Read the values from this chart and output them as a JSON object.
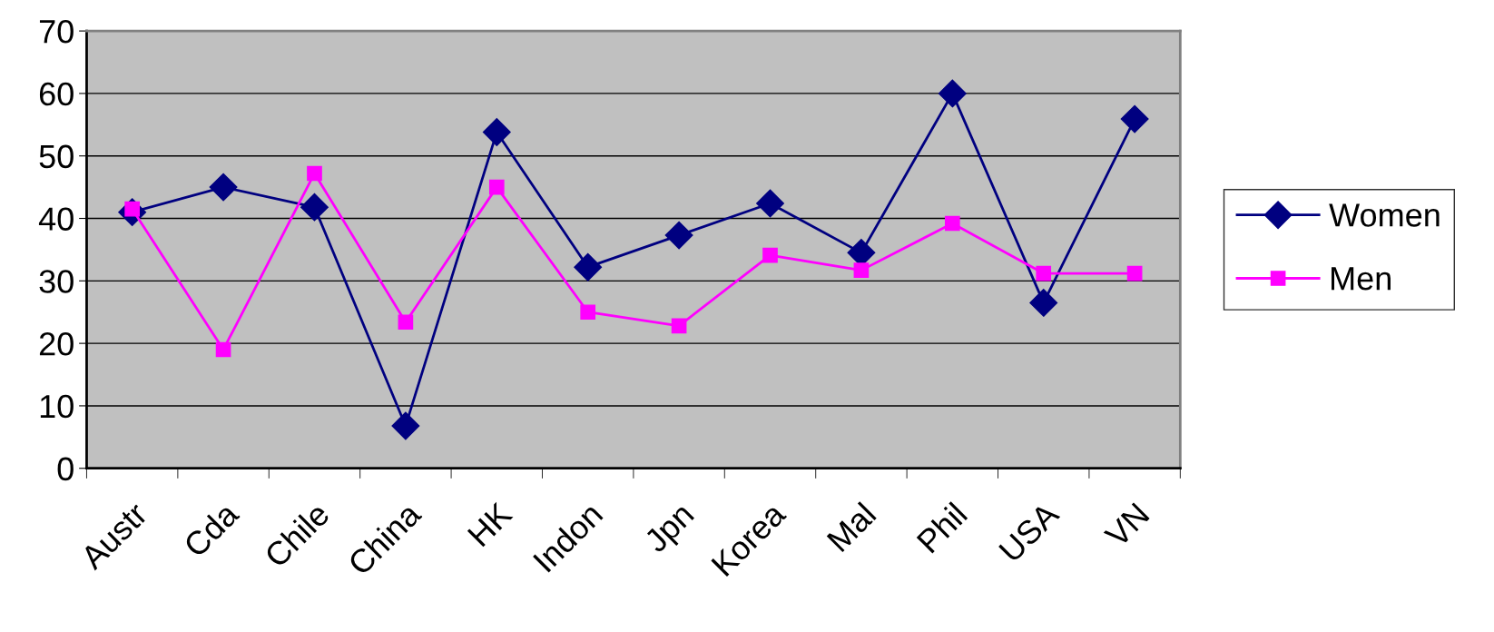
{
  "chart_data": {
    "type": "line",
    "categories": [
      "Austr",
      "Cda",
      "Chile",
      "China",
      "HK",
      "Indon",
      "Jpn",
      "Korea",
      "Mal",
      "Phil",
      "USA",
      "VN"
    ],
    "series": [
      {
        "name": "Women",
        "color": "#000080",
        "marker": "diamond",
        "values": [
          41,
          45,
          41.8,
          6.8,
          53.8,
          32.2,
          37.3,
          42.4,
          34.5,
          60,
          26.5,
          55.9
        ]
      },
      {
        "name": "Men",
        "color": "#ff00ff",
        "marker": "square",
        "values": [
          41.5,
          19,
          47.2,
          23.4,
          45,
          25,
          22.8,
          34.1,
          31.7,
          39.2,
          31.2,
          31.2
        ]
      }
    ],
    "ylim": [
      0,
      70
    ],
    "yticks": [
      0,
      10,
      20,
      30,
      40,
      50,
      60,
      70
    ],
    "grid": "y",
    "legend": "right",
    "line_style": "solid"
  }
}
